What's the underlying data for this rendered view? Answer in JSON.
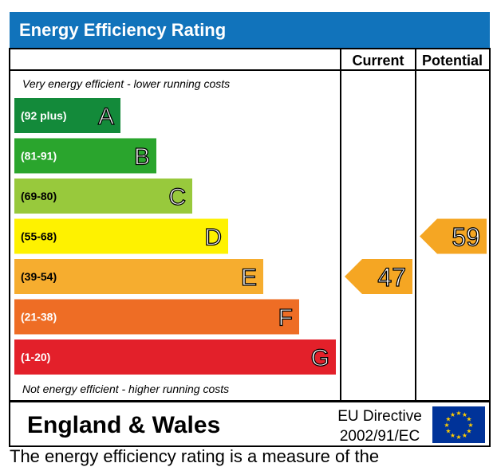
{
  "title": "Energy Efficiency Rating",
  "columns": {
    "current": "Current",
    "potential": "Potential"
  },
  "top_note": "Very energy efficient - lower running costs",
  "bottom_note": "Not energy efficient - higher running costs",
  "region": "England & Wales",
  "directive_line1": "EU Directive",
  "directive_line2": "2002/91/EC",
  "footer_fragment": "The energy efficiency rating is a measure of the",
  "colors": {
    "header": "#1173bb",
    "arrow": "#f5a623",
    "eu_flag": "#003399",
    "eu_star": "#ffcc00"
  },
  "chart_data": {
    "type": "bar",
    "categories": [
      "A",
      "B",
      "C",
      "D",
      "E",
      "F",
      "G"
    ],
    "bands": [
      {
        "letter": "A",
        "range": "(92 plus)",
        "color": "#138a3a"
      },
      {
        "letter": "B",
        "range": "(81-91)",
        "color": "#2aa52d"
      },
      {
        "letter": "C",
        "range": "(69-80)",
        "color": "#98c93c"
      },
      {
        "letter": "D",
        "range": "(55-68)",
        "color": "#fef200"
      },
      {
        "letter": "E",
        "range": "(39-54)",
        "color": "#f6ad2f"
      },
      {
        "letter": "F",
        "range": "(21-38)",
        "color": "#ee6d25"
      },
      {
        "letter": "G",
        "range": "(1-20)",
        "color": "#e3202a"
      }
    ],
    "current": {
      "value": 47,
      "band": "E"
    },
    "potential": {
      "value": 59,
      "band": "D"
    }
  }
}
